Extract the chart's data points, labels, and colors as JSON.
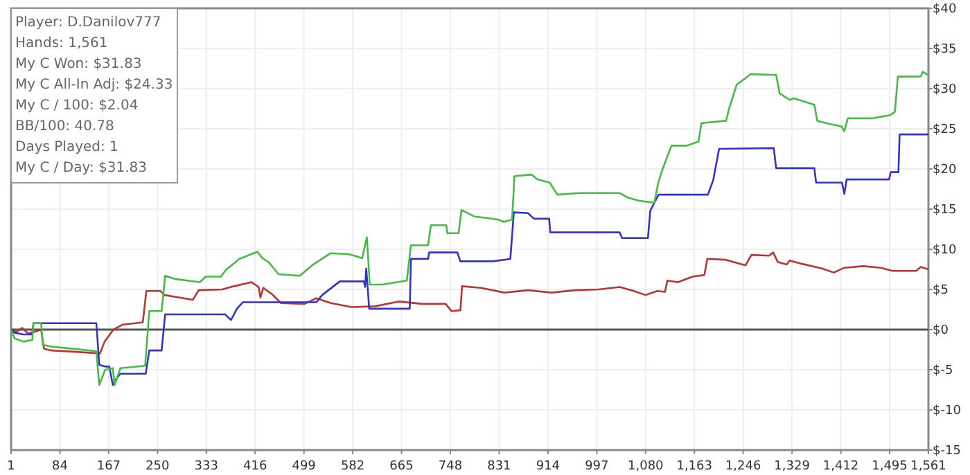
{
  "chart_data": {
    "type": "line",
    "annotations": [
      "Player: D.Danilov777",
      "Hands: 1,561",
      "My C Won: $31.83",
      "My C All-In Adj: $24.33",
      "My C / 100: $2.04",
      "BB/100: 40.78",
      "Days Played: 1",
      "My C / Day: $31.83"
    ],
    "xlim": [
      1,
      1561
    ],
    "xticks": [
      1,
      84,
      167,
      250,
      333,
      416,
      499,
      582,
      665,
      748,
      831,
      914,
      997,
      {
        "value": 1080,
        "label": "1,080"
      },
      {
        "value": 1163,
        "label": "1,163"
      },
      {
        "value": 1246,
        "label": "1,246"
      },
      {
        "value": 1329,
        "label": "1,329"
      },
      {
        "value": 1412,
        "label": "1,412"
      },
      {
        "value": 1495,
        "label": "1,495"
      },
      {
        "value": 1561,
        "label": "1,561"
      }
    ],
    "ylim": [
      -15,
      40
    ],
    "yticks": [
      {
        "value": -15,
        "label": "$-15"
      },
      {
        "value": -10,
        "label": "$-10"
      },
      {
        "value": -5,
        "label": "$-5"
      },
      {
        "value": 0,
        "label": "$0"
      },
      {
        "value": 5,
        "label": "$5"
      },
      {
        "value": 10,
        "label": "$10"
      },
      {
        "value": 15,
        "label": "$15"
      },
      {
        "value": 20,
        "label": "$20"
      },
      {
        "value": 25,
        "label": "$25"
      },
      {
        "value": 30,
        "label": "$30"
      },
      {
        "value": 35,
        "label": "$35"
      },
      {
        "value": 40,
        "label": "$40"
      }
    ],
    "grid": true,
    "marker": "none",
    "line_style": "solid",
    "ref_lines": [
      {
        "axis": "y",
        "value": 0,
        "color": "#555555"
      }
    ],
    "series": [
      {
        "color": "#bb3333",
        "x": [
          1,
          10,
          20,
          30,
          40,
          52,
          57,
          70,
          140,
          152,
          160,
          175,
          190,
          225,
          231,
          255,
          262,
          310,
          320,
          360,
          380,
          410,
          422,
          425,
          430,
          445,
          460,
          500,
          520,
          545,
          580,
          620,
          660,
          700,
          740,
          750,
          765,
          768,
          800,
          840,
          880,
          920,
          960,
          1000,
          1036,
          1060,
          1080,
          1100,
          1113,
          1117,
          1135,
          1160,
          1180,
          1185,
          1215,
          1250,
          1260,
          1290,
          1297,
          1305,
          1320,
          1325,
          1345,
          1380,
          1400,
          1418,
          1450,
          1480,
          1500,
          1540,
          1548,
          1561
        ],
        "values": [
          0,
          -0.3,
          0.2,
          -0.5,
          -0.3,
          0,
          -2.4,
          -2.6,
          -2.9,
          -3.0,
          -1.5,
          0,
          0.6,
          0.9,
          4.8,
          4.8,
          4.3,
          3.7,
          4.9,
          5.0,
          5.4,
          5.9,
          5.3,
          4.0,
          5.2,
          4.4,
          3.3,
          3.2,
          3.9,
          3.3,
          2.8,
          2.9,
          3.5,
          3.2,
          3.2,
          2.3,
          2.4,
          5.4,
          5.2,
          4.6,
          4.9,
          4.6,
          4.9,
          5.0,
          5.3,
          4.8,
          4.3,
          4.8,
          4.7,
          6.1,
          5.9,
          6.6,
          6.8,
          8.8,
          8.7,
          8.0,
          9.3,
          9.2,
          9.6,
          8.4,
          8.1,
          8.6,
          8.2,
          7.6,
          7.1,
          7.7,
          7.9,
          7.7,
          7.3,
          7.3,
          7.8,
          7.5
        ]
      },
      {
        "color": "#3333cc",
        "x": [
          1,
          7,
          22,
          37,
          39,
          146,
          151,
          161,
          168,
          174,
          177,
          187,
          230,
          236,
          257,
          263,
          365,
          375,
          385,
          395,
          520,
          530,
          560,
          601,
          603,
          605,
          610,
          679,
          681,
          710,
          712,
          760,
          765,
          820,
          850,
          856,
          880,
          890,
          916,
          918,
          1036,
          1040,
          1084,
          1088,
          1102,
          1186,
          1195,
          1205,
          1298,
          1302,
          1367,
          1370,
          1414,
          1418,
          1422,
          1494,
          1497,
          1510,
          1512,
          1561
        ],
        "values": [
          0,
          -0.4,
          -0.6,
          -0.6,
          0.8,
          0.8,
          -4.4,
          -4.6,
          -4.6,
          -6.9,
          -6.4,
          -5.5,
          -5.5,
          -2.6,
          -2.6,
          1.9,
          1.9,
          1.2,
          2.6,
          3.4,
          3.4,
          4.3,
          6.0,
          6.0,
          5.3,
          7.6,
          2.6,
          2.6,
          8.8,
          8.8,
          9.6,
          9.6,
          8.5,
          8.5,
          8.8,
          14.6,
          14.5,
          13.8,
          13.8,
          12.1,
          12.1,
          11.4,
          11.4,
          14.8,
          16.8,
          16.8,
          18.6,
          22.5,
          22.6,
          20.1,
          20.1,
          18.3,
          18.3,
          16.9,
          18.7,
          18.7,
          19.6,
          19.6,
          24.3,
          24.3
        ]
      },
      {
        "color": "#44bb44",
        "x": [
          1,
          7,
          22,
          37,
          39,
          52,
          55,
          68,
          146,
          151,
          161,
          174,
          177,
          187,
          229,
          236,
          257,
          263,
          280,
          322,
          332,
          358,
          366,
          389,
          420,
          428,
          439,
          456,
          492,
          513,
          544,
          575,
          598,
          606,
          611,
          632,
          674,
          681,
          710,
          715,
          741,
          743,
          762,
          767,
          788,
          829,
          839,
          853,
          857,
          886,
          896,
          917,
          930,
          969,
          1036,
          1051,
          1072,
          1095,
          1101,
          1108,
          1124,
          1150,
          1170,
          1175,
          1217,
          1222,
          1235,
          1250,
          1258,
          1302,
          1308,
          1325,
          1332,
          1367,
          1372,
          1393,
          1413,
          1418,
          1424,
          1465,
          1496,
          1504,
          1509,
          1548,
          1551,
          1561
        ],
        "values": [
          0,
          -1.1,
          -1.5,
          -1.3,
          0.8,
          0.8,
          -1.9,
          -2.1,
          -2.7,
          -6.9,
          -5,
          -4.8,
          -6.9,
          -4.8,
          -4.5,
          2.3,
          2.3,
          6.7,
          6.3,
          5.9,
          6.6,
          6.6,
          7.4,
          8.8,
          9.7,
          8.9,
          8.4,
          6.9,
          6.7,
          8.0,
          9.5,
          9.4,
          8.9,
          11.5,
          5.6,
          5.6,
          6.1,
          10.5,
          10.5,
          13.0,
          13.0,
          12,
          12,
          14.9,
          14.1,
          13.7,
          13.4,
          13.7,
          19.1,
          19.3,
          18.7,
          18.3,
          16.8,
          17.0,
          17.0,
          16.4,
          16.0,
          15.8,
          18.1,
          19.8,
          22.9,
          22.9,
          23.4,
          25.7,
          26.0,
          27.5,
          30.5,
          31.3,
          31.8,
          31.7,
          29.4,
          28.6,
          28.8,
          28.0,
          26.0,
          25.6,
          25.3,
          24.7,
          26.3,
          26.3,
          26.7,
          27.1,
          31.5,
          31.5,
          32.1,
          31.7
        ]
      }
    ]
  }
}
